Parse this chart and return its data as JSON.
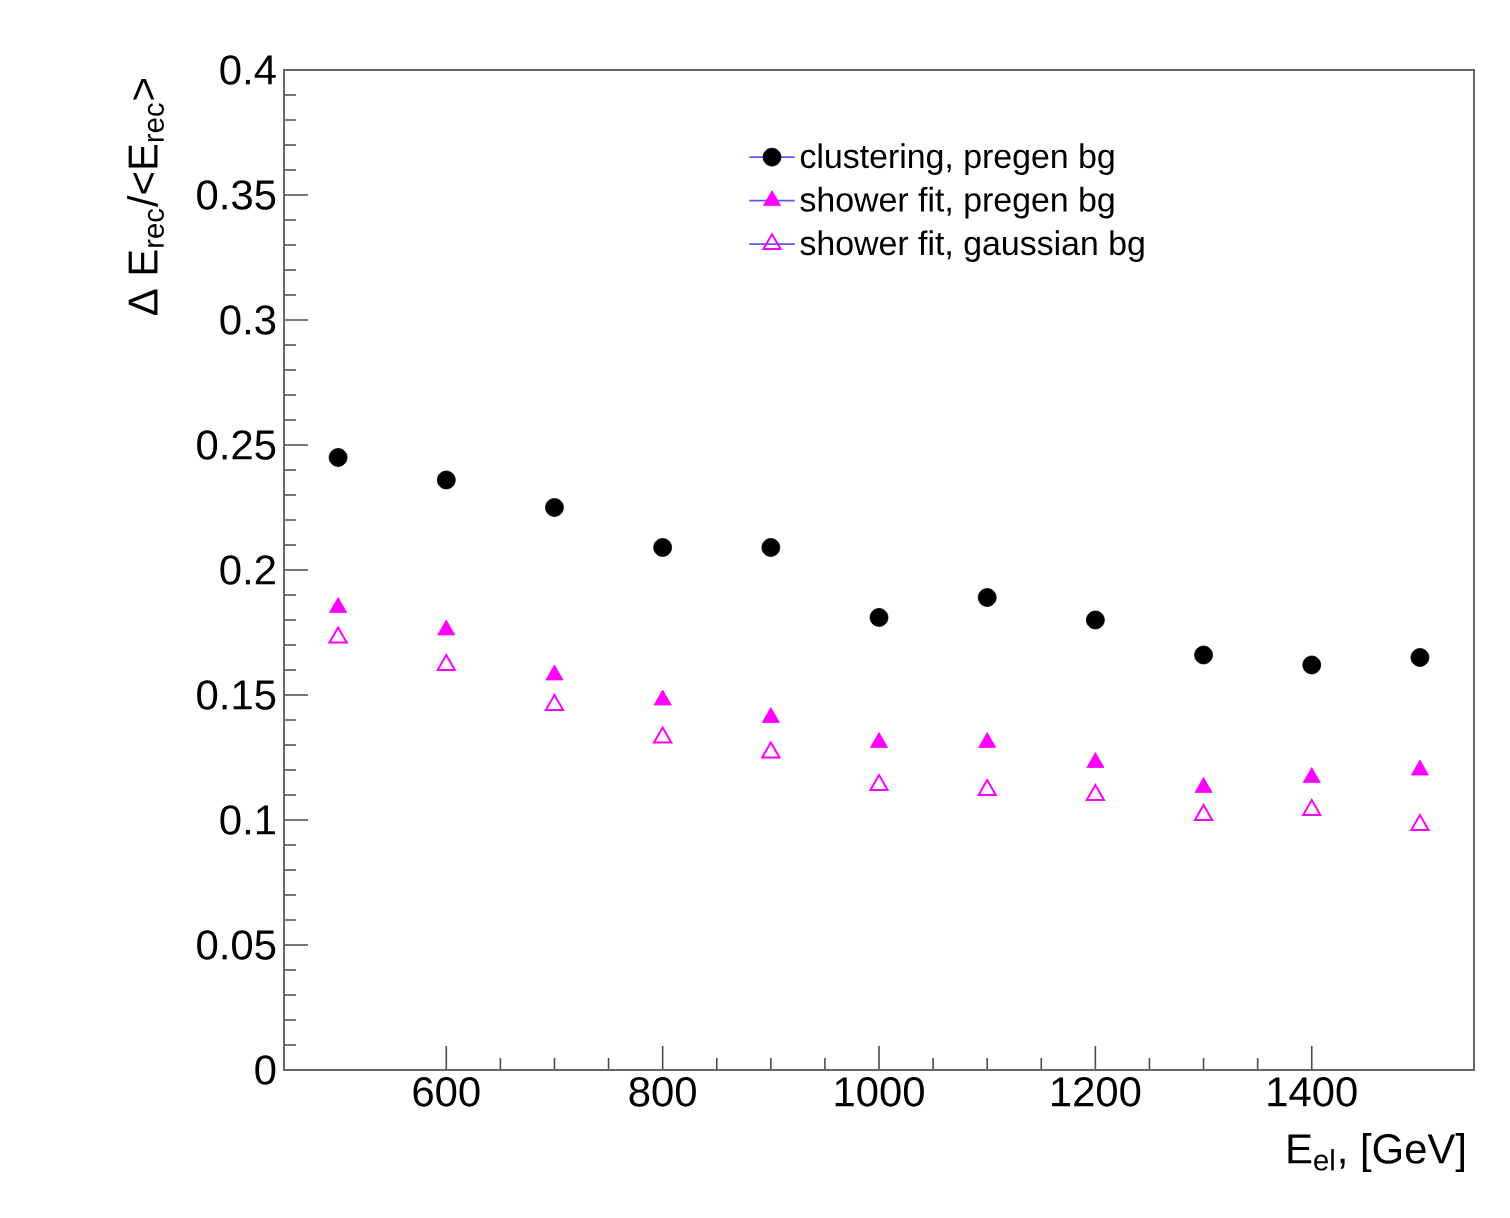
{
  "chart_data": {
    "type": "scatter",
    "xlabel": "E$_{el}$, [GeV]",
    "ylabel": "Δ E$_{rec}$/<E$_{rec}$>",
    "x": [
      500,
      600,
      700,
      800,
      900,
      1000,
      1100,
      1200,
      1300,
      1400,
      1500
    ],
    "series": [
      {
        "name": "clustering, pregen bg",
        "color": "#000000",
        "marker": "circle",
        "values": [
          0.245,
          0.236,
          0.225,
          0.209,
          0.209,
          0.181,
          0.189,
          0.18,
          0.166,
          0.162,
          0.165
        ]
      },
      {
        "name": "shower fit, pregen bg",
        "color": "#ff00ff",
        "marker": "triangle",
        "values": [
          0.185,
          0.176,
          0.158,
          0.148,
          0.141,
          0.131,
          0.131,
          0.123,
          0.113,
          0.117,
          0.12
        ]
      },
      {
        "name": "shower fit, gaussian bg",
        "color": "#ff00ff",
        "marker": "triangle-open",
        "values": [
          0.173,
          0.162,
          0.146,
          0.133,
          0.127,
          0.114,
          0.112,
          0.11,
          0.102,
          0.104,
          0.098
        ]
      }
    ],
    "xlim": [
      450,
      1550
    ],
    "ylim": [
      0,
      0.4
    ],
    "xticks": [
      600,
      800,
      1000,
      1200,
      1400
    ],
    "yticks": [
      0,
      0.05,
      0.1,
      0.15,
      0.2,
      0.25,
      0.3,
      0.35,
      0.4
    ],
    "grid": false,
    "legend": "top right"
  }
}
